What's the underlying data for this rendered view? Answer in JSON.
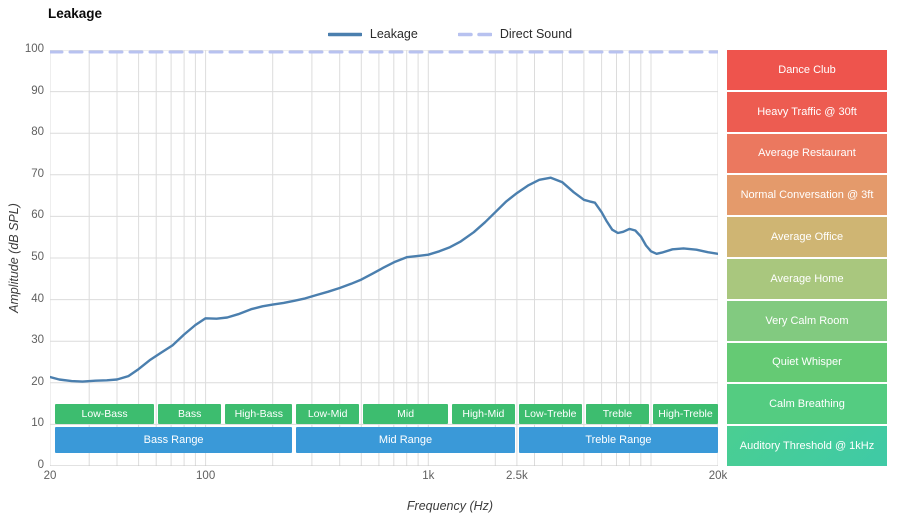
{
  "title": "Leakage",
  "legend": [
    {
      "label": "Leakage",
      "color": "#4b7fae",
      "style": "solid"
    },
    {
      "label": "Direct Sound",
      "color": "#b8c2f0",
      "style": "dashed"
    }
  ],
  "axes": {
    "x_label": "Frequency (Hz)",
    "y_label": "Amplitude (dB SPL)",
    "x_ticks": [
      {
        "f": 20,
        "label": "20"
      },
      {
        "f": 100,
        "label": "100"
      },
      {
        "f": 1000,
        "label": "1k"
      },
      {
        "f": 2500,
        "label": "2.5k"
      },
      {
        "f": 20000,
        "label": "20k"
      }
    ],
    "y_ticks": [
      0,
      10,
      20,
      30,
      40,
      50,
      60,
      70,
      80,
      90,
      100
    ]
  },
  "chart_data": {
    "type": "line",
    "title": "Leakage",
    "xlabel": "Frequency (Hz)",
    "ylabel": "Amplitude (dB SPL)",
    "x_scale": "log",
    "xlim": [
      20,
      20000
    ],
    "ylim": [
      0,
      100
    ],
    "grid": true,
    "legend_position": "top-center",
    "grid_freqs": [
      20,
      30,
      40,
      50,
      60,
      70,
      80,
      90,
      100,
      200,
      300,
      400,
      500,
      600,
      700,
      800,
      900,
      1000,
      2000,
      2500,
      3000,
      4000,
      5000,
      6000,
      7000,
      8000,
      9000,
      10000,
      20000
    ],
    "series": [
      {
        "name": "Leakage",
        "color": "#4b7fae",
        "style": "solid",
        "x": [
          20,
          22,
          25,
          28,
          32,
          36,
          40,
          45,
          50,
          56,
          63,
          71,
          80,
          90,
          100,
          112,
          125,
          140,
          160,
          180,
          200,
          224,
          250,
          280,
          315,
          355,
          400,
          450,
          500,
          560,
          630,
          710,
          800,
          900,
          1000,
          1120,
          1250,
          1400,
          1600,
          1800,
          2000,
          2240,
          2500,
          2800,
          3150,
          3550,
          4000,
          4500,
          5000,
          5300,
          5600,
          6000,
          6300,
          6700,
          7100,
          7500,
          8000,
          8500,
          9000,
          9500,
          10000,
          10600,
          11200,
          12500,
          14000,
          16000,
          18000,
          20000
        ],
        "y": [
          21.4,
          20.8,
          20.4,
          20.3,
          20.5,
          20.6,
          20.8,
          21.6,
          23.3,
          25.4,
          27.2,
          29.0,
          31.6,
          33.9,
          35.5,
          35.4,
          35.7,
          36.5,
          37.7,
          38.4,
          38.8,
          39.2,
          39.7,
          40.3,
          41.1,
          41.9,
          42.8,
          43.8,
          44.8,
          46.2,
          47.7,
          49.1,
          50.2,
          50.5,
          50.8,
          51.6,
          52.6,
          54.0,
          56.2,
          58.6,
          61.0,
          63.6,
          65.6,
          67.4,
          68.8,
          69.3,
          68.2,
          65.8,
          64.0,
          63.6,
          63.3,
          61.0,
          59.0,
          56.8,
          56.0,
          56.3,
          57.0,
          56.6,
          55.2,
          53.0,
          51.6,
          51.0,
          51.3,
          52.1,
          52.3,
          52.0,
          51.4,
          51.0
        ]
      },
      {
        "name": "Direct Sound",
        "color": "#b8c2f0",
        "style": "dashed",
        "constant_y": 100
      }
    ]
  },
  "frequency_bands": {
    "sub_band_color": "#3dbd6f",
    "main_band_color": "#3a99d8",
    "sub_bands": [
      {
        "label": "Low-Bass",
        "f1": 20,
        "f2": 60
      },
      {
        "label": "Bass",
        "f1": 60,
        "f2": 120
      },
      {
        "label": "High-Bass",
        "f1": 120,
        "f2": 250
      },
      {
        "label": "Low-Mid",
        "f1": 250,
        "f2": 500
      },
      {
        "label": "Mid",
        "f1": 500,
        "f2": 1250
      },
      {
        "label": "High-Mid",
        "f1": 1250,
        "f2": 2500
      },
      {
        "label": "Low-Treble",
        "f1": 2500,
        "f2": 5000
      },
      {
        "label": "Treble",
        "f1": 5000,
        "f2": 10000
      },
      {
        "label": "High-Treble",
        "f1": 10000,
        "f2": 20000
      }
    ],
    "main_bands": [
      {
        "label": "Bass Range",
        "f1": 20,
        "f2": 250
      },
      {
        "label": "Mid Range",
        "f1": 250,
        "f2": 2500
      },
      {
        "label": "Treble Range",
        "f1": 2500,
        "f2": 20000
      }
    ]
  },
  "noise_levels": [
    {
      "label": "Dance Club",
      "color": "#ee544d",
      "range_db": [
        90,
        100
      ]
    },
    {
      "label": "Heavy Traffic @ 30ft",
      "color": "#ed5c51",
      "range_db": [
        80,
        90
      ]
    },
    {
      "label": "Average Restaurant",
      "color": "#eb785f",
      "range_db": [
        70,
        80
      ]
    },
    {
      "label": "Normal Conversation @ 3ft",
      "color": "#e49a6b",
      "range_db": [
        60,
        70
      ]
    },
    {
      "label": "Average Office",
      "color": "#cfb573",
      "range_db": [
        50,
        60
      ]
    },
    {
      "label": "Average Home",
      "color": "#a9c77e",
      "range_db": [
        40,
        50
      ]
    },
    {
      "label": "Very Calm Room",
      "color": "#82ca80",
      "range_db": [
        30,
        40
      ]
    },
    {
      "label": "Quiet Whisper",
      "color": "#65ca74",
      "range_db": [
        20,
        30
      ]
    },
    {
      "label": "Calm Breathing",
      "color": "#54cc81",
      "range_db": [
        10,
        20
      ]
    },
    {
      "label": "Auditory Threshold @ 1kHz",
      "color": "#4ace92",
      "color2": "#3fcaa6",
      "range_db": [
        0,
        10
      ]
    }
  ]
}
